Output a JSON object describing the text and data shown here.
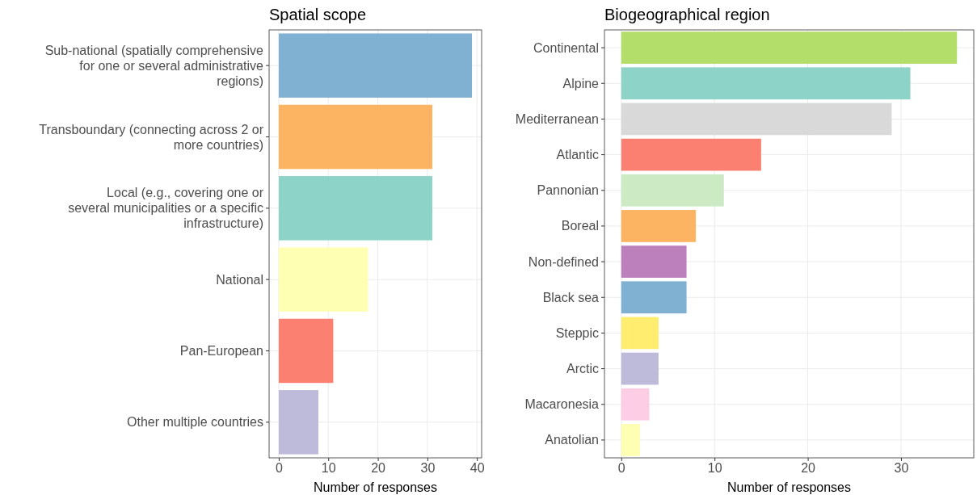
{
  "chart_data": [
    {
      "type": "bar",
      "orientation": "horizontal",
      "title": "Spatial scope",
      "xlabel": "Number of responses",
      "categories": [
        "Sub-national (spatially comprehensive\nfor one or several administrative\nregions)",
        "Transboundary (connecting across 2 or\nmore countries)",
        "Local (e.g., covering one or\nseveral municipalities or a specific\ninfrastructure)",
        "National",
        "Pan-European",
        "Other multiple countries"
      ],
      "values": [
        39,
        31,
        31,
        18,
        11,
        8
      ],
      "colors": [
        "#80b1d3",
        "#fdb462",
        "#8dd3c7",
        "#ffffb3",
        "#fb8072",
        "#bebada"
      ],
      "xlim": [
        -1.95,
        40.95
      ],
      "xticks": [
        0,
        10,
        20,
        30,
        40
      ],
      "grid": true
    },
    {
      "type": "bar",
      "orientation": "horizontal",
      "title": "Biogeographical region",
      "xlabel": "Number of responses",
      "categories": [
        "Continental",
        "Alpine",
        "Mediterranean",
        "Atlantic",
        "Pannonian",
        "Boreal",
        "Non-defined",
        "Black sea",
        "Steppic",
        "Arctic",
        "Macaronesia",
        "Anatolian"
      ],
      "values": [
        36,
        31,
        29,
        15,
        11,
        8,
        7,
        7,
        4,
        4,
        3,
        2
      ],
      "colors": [
        "#b3de69",
        "#8dd3c7",
        "#d9d9d9",
        "#fb8072",
        "#ccebc5",
        "#fdb462",
        "#bc80bd",
        "#80b1d3",
        "#ffed6f",
        "#bebada",
        "#fccde5",
        "#ffffb3"
      ],
      "xlim": [
        -1.8,
        37.8
      ],
      "xticks": [
        0,
        10,
        20,
        30
      ],
      "grid": true
    }
  ]
}
